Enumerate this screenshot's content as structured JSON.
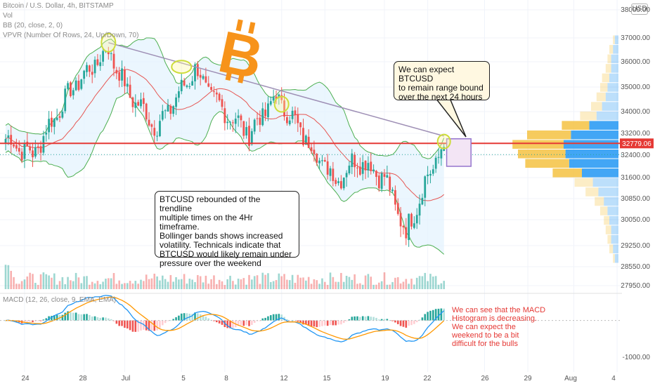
{
  "header": {
    "title": "Bitcoin / U.S. Dollar, 4h, BITSTAMP",
    "vol": "Vol",
    "bb": "BB (20, close, 2, 0)",
    "vpvr": "VPVR (Number Of Rows, 24, Up/Down, 70)",
    "macd": "MACD (12, 26, close, 9, EMA, EMA)"
  },
  "currency_badge": "USD",
  "annotations": {
    "top_note": [
      "We can expect BTCUSD",
      "to remain range bound",
      "over the next 24 hours"
    ],
    "mid_note": [
      "BTCUSD rebounded of the trendline",
      "multiple times on the 4Hr timeframe.",
      "Bollinger bands shows increased",
      "volatility. Technicals indicate that",
      "BTCUSD would likely remain under",
      "pressure over the weekend"
    ],
    "macd_note": [
      "We can see that the MACD",
      "Histogram is decreasing.",
      "We can expect the",
      "weekend to be a bit",
      "difficult for the bulls"
    ]
  },
  "colors": {
    "up": "#26a69a",
    "down": "#ef5350",
    "bb_band": "#4caf50",
    "bb_fill": "#e3f2fd",
    "bb_basis": "#e53935",
    "trendline": "#9e8fb5",
    "price_line": "#e53935",
    "macd_line": "#2196f3",
    "signal_line": "#ff9800",
    "vp_up": "#2196f3",
    "vp_down": "#f5c242",
    "bitcoin_logo": "#f7931a"
  },
  "chart_data": {
    "type": "candlestick",
    "title": "Bitcoin / U.S. Dollar, 4h, BITSTAMP",
    "ylim": [
      27600,
      38600
    ],
    "y_ticks": [
      "38000.00",
      "37000.00",
      "36000.00",
      "35000.00",
      "34000.00",
      "33200.00",
      "32400.00",
      "31600.00",
      "30850.00",
      "30050.00",
      "29250.00",
      "28550.00",
      "27950.00"
    ],
    "x_ticks": [
      "24",
      "28",
      "Jul",
      "5",
      "8",
      "12",
      "15",
      "19",
      "22",
      "26",
      "29",
      "Aug",
      "4"
    ],
    "last_price": "32779.06",
    "price_key_points": [
      {
        "t": 0,
        "p": 33000
      },
      {
        "t": 10,
        "p": 32400
      },
      {
        "t": 25,
        "p": 35000
      },
      {
        "t": 38,
        "p": 36500
      },
      {
        "t": 45,
        "p": 34800
      },
      {
        "t": 56,
        "p": 33400
      },
      {
        "t": 70,
        "p": 35700
      },
      {
        "t": 79,
        "p": 34200
      },
      {
        "t": 90,
        "p": 33200
      },
      {
        "t": 100,
        "p": 34600
      },
      {
        "t": 113,
        "p": 32700
      },
      {
        "t": 122,
        "p": 31500
      },
      {
        "t": 130,
        "p": 32300
      },
      {
        "t": 140,
        "p": 31600
      },
      {
        "t": 148,
        "p": 29600
      },
      {
        "t": 155,
        "p": 31400
      },
      {
        "t": 162,
        "p": 32800
      }
    ],
    "trendline": {
      "from": {
        "t": 38,
        "p": 36800
      },
      "to": {
        "t": 162,
        "p": 33100
      }
    },
    "projection_box": {
      "t_start": 163,
      "t_end": 172,
      "p_high": 33000,
      "p_low": 32000
    },
    "volume_profile": {
      "rows": 24,
      "up": [
        2,
        3,
        4,
        4,
        5,
        6,
        7,
        9,
        12,
        16,
        26,
        30,
        29,
        27,
        20,
        14,
        11,
        8,
        6,
        5,
        4,
        4,
        3,
        2
      ],
      "down": [
        1,
        2,
        2,
        3,
        4,
        4,
        5,
        6,
        9,
        15,
        24,
        28,
        26,
        24,
        16,
        10,
        7,
        5,
        4,
        3,
        3,
        2,
        2,
        1
      ]
    },
    "macd": {
      "y_ticks": [
        "0.00",
        "-1000.00"
      ],
      "ylim": [
        -1300,
        600
      ]
    }
  }
}
